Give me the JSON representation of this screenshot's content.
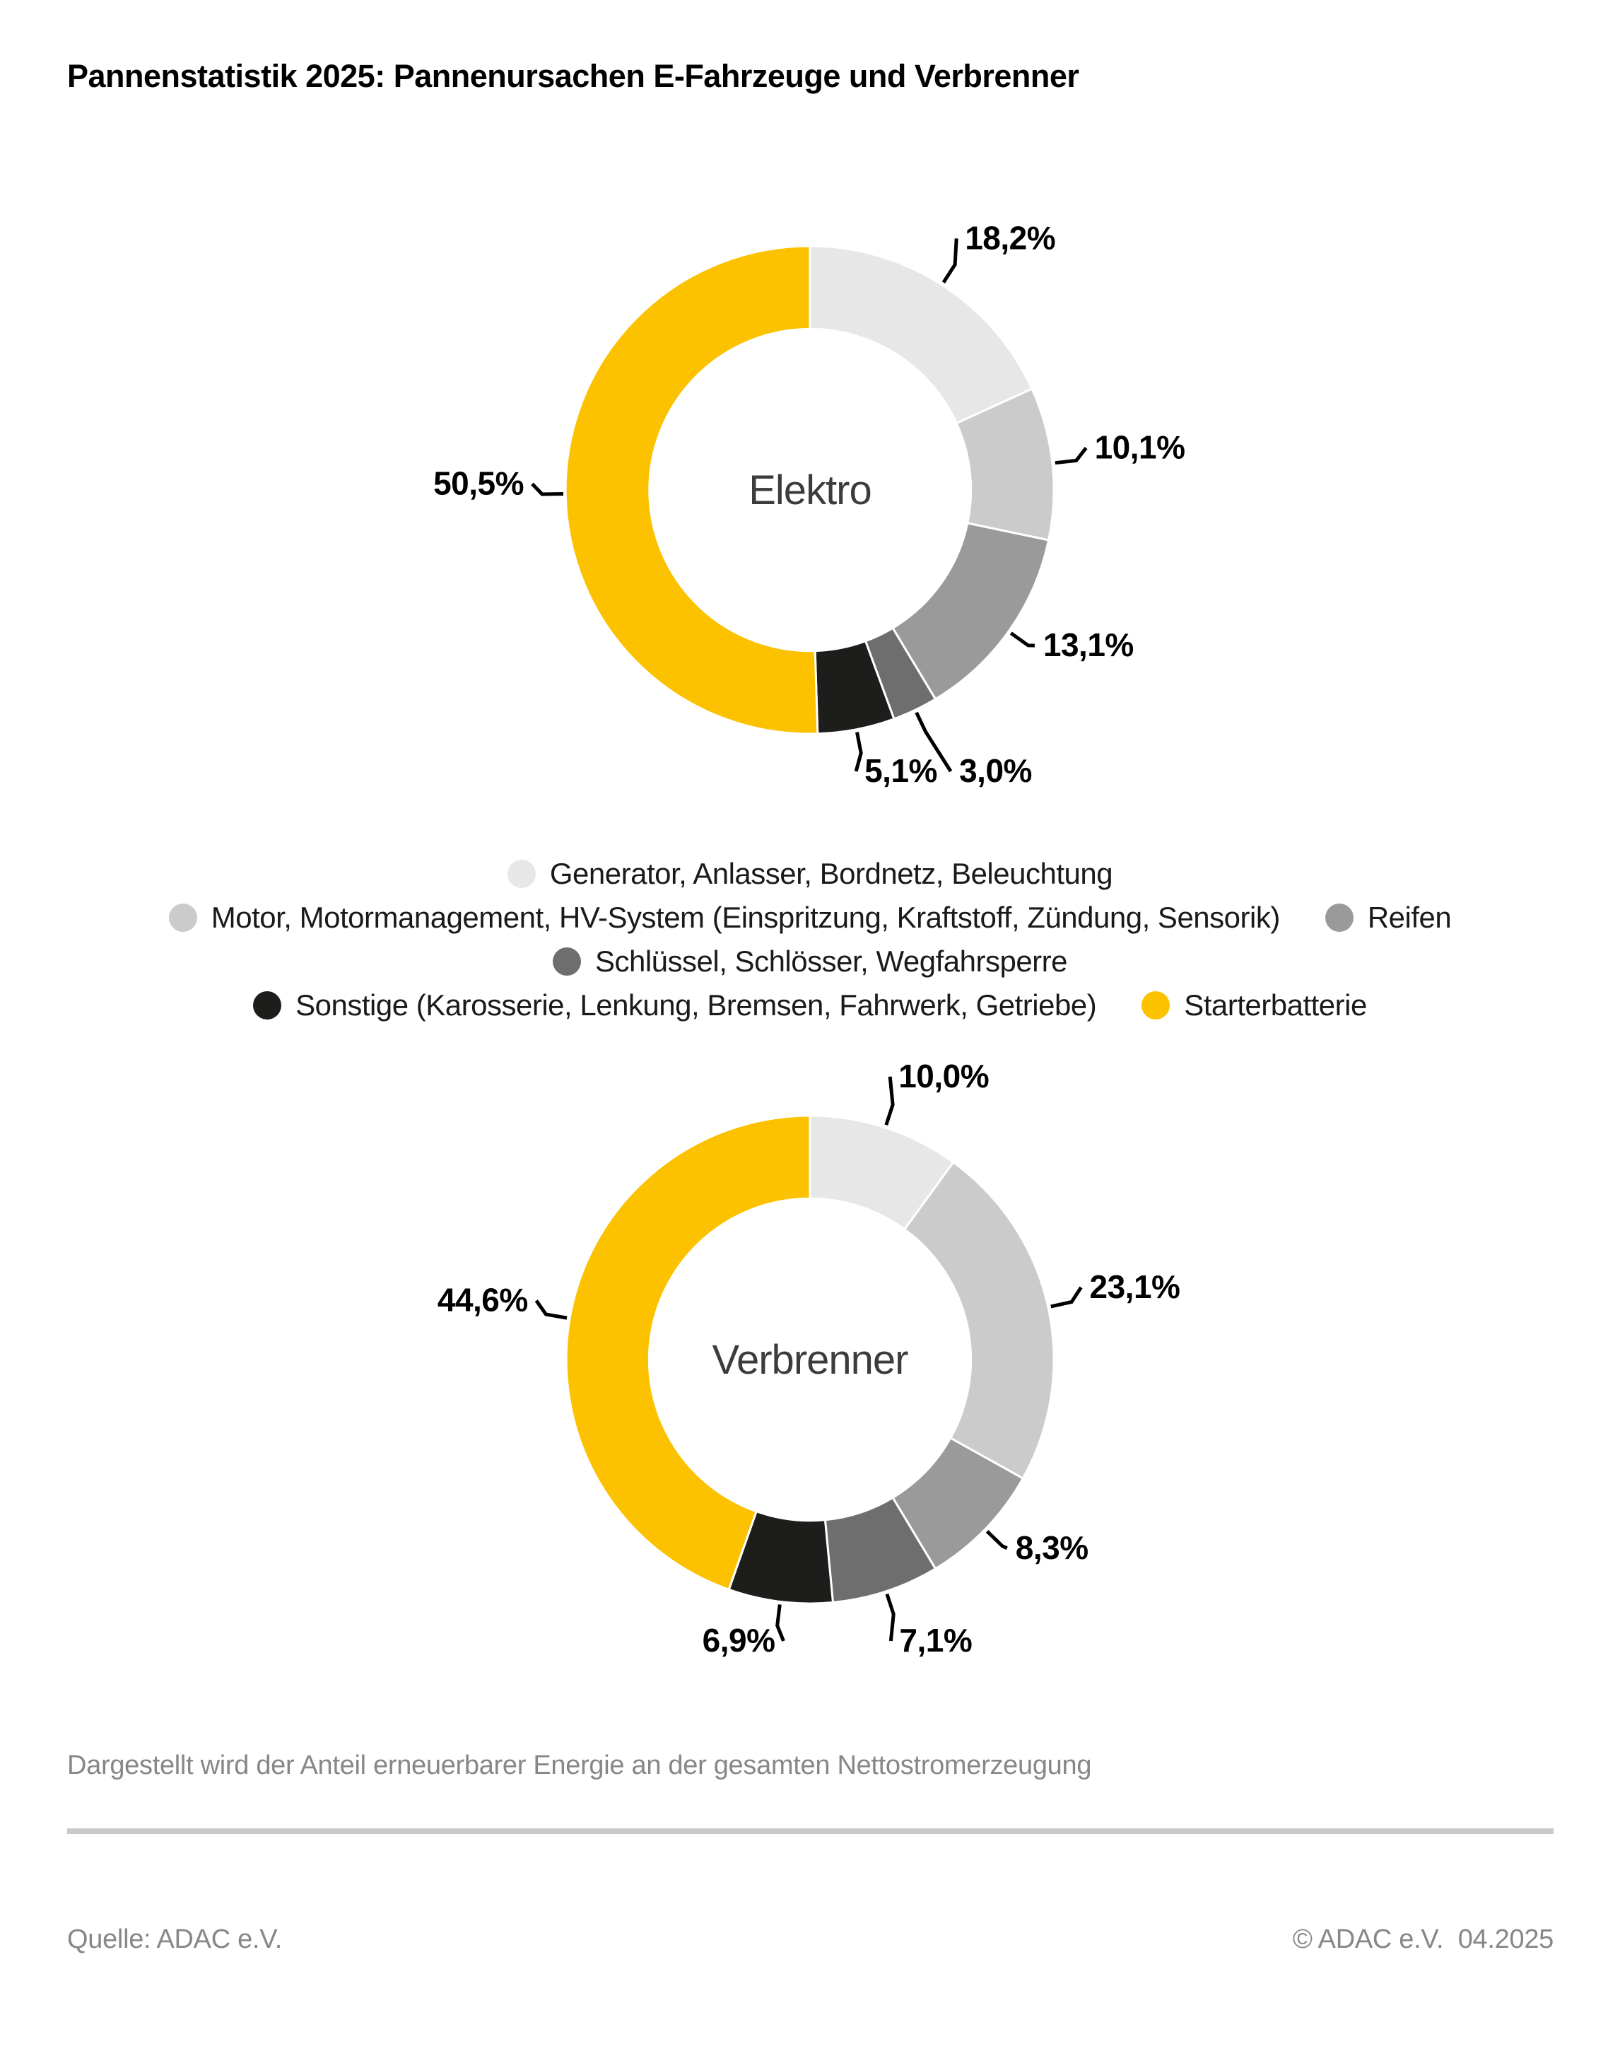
{
  "header": {
    "title": "Pannenstatistik 2025: Pannenursachen E-Fahrzeuge und Verbrenner"
  },
  "legend": {
    "items": [
      {
        "label": "Generator, Anlasser, Bordnetz, Beleuchtung",
        "color": "#E7E7E7"
      },
      {
        "label": "Motor, Motormanagement, HV-System (Einspritzung, Kraftstoff, Zündung, Sensorik)",
        "color": "#CBCBCB"
      },
      {
        "label": "Reifen",
        "color": "#9A9A9A"
      },
      {
        "label": "Schlüssel, Schlösser, Wegfahrsperre",
        "color": "#6E6E6E"
      },
      {
        "label": "Sonstige (Karosserie, Lenkung, Bremsen, Fahrwerk, Getriebe)",
        "color": "#1D1D1B"
      },
      {
        "label": "Starterbatterie",
        "color": "#FCC200"
      }
    ]
  },
  "chart_data": [
    {
      "type": "pie",
      "variant": "donut",
      "center_label": "Elektro",
      "unit": "%",
      "direction": "clockwise",
      "start_angle_deg": 0,
      "inner_radius_ratio": 0.66,
      "categories": [
        "Generator, Anlasser, Bordnetz, Beleuchtung",
        "Motor, Motormanagement, HV-System (Einspritzung, Kraftstoff, Zündung, Sensorik)",
        "Reifen",
        "Schlüssel, Schlösser, Wegfahrsperre",
        "Sonstige (Karosserie, Lenkung, Bremsen, Fahrwerk, Getriebe)",
        "Starterbatterie"
      ],
      "values": [
        18.2,
        10.1,
        13.1,
        3.0,
        5.1,
        50.5
      ],
      "labels": [
        "18,2%",
        "10,1%",
        "13,1%",
        "3,0%",
        "5,1%",
        "50,5%"
      ],
      "colors": [
        "#E7E7E7",
        "#CBCBCB",
        "#9A9A9A",
        "#6E6E6E",
        "#1D1D1B",
        "#FCC200"
      ]
    },
    {
      "type": "pie",
      "variant": "donut",
      "center_label": "Verbrenner",
      "unit": "%",
      "direction": "clockwise",
      "start_angle_deg": 0,
      "inner_radius_ratio": 0.66,
      "categories": [
        "Generator, Anlasser, Bordnetz, Beleuchtung",
        "Motor, Motormanagement, HV-System (Einspritzung, Kraftstoff, Zündung, Sensorik)",
        "Reifen",
        "Schlüssel, Schlösser, Wegfahrsperre",
        "Sonstige (Karosserie, Lenkung, Bremsen, Fahrwerk, Getriebe)",
        "Starterbatterie"
      ],
      "values": [
        10.0,
        23.1,
        8.3,
        7.1,
        6.9,
        44.6
      ],
      "labels": [
        "10,0%",
        "23,1%",
        "8,3%",
        "7,1%",
        "6,9%",
        "44,6%"
      ],
      "colors": [
        "#E7E7E7",
        "#CBCBCB",
        "#9A9A9A",
        "#6E6E6E",
        "#1D1D1B",
        "#FCC200"
      ]
    }
  ],
  "footnote": "Dargestellt wird der Anteil erneuerbarer Energie an der gesamten Nettostromerzeugung",
  "footer": {
    "source": "Quelle: ADAC e.V.",
    "copyright": "© ADAC e.V.  04.2025"
  }
}
